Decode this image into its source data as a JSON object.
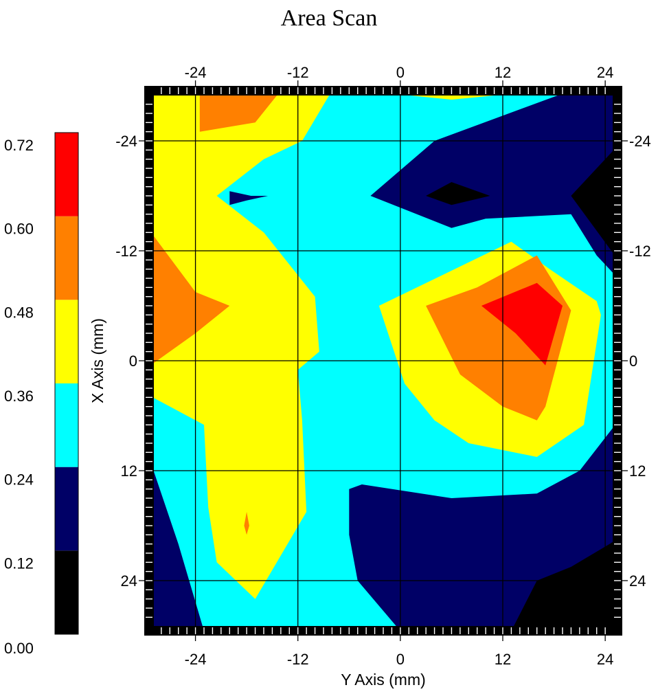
{
  "chart_data": {
    "type": "heatmap",
    "title": "Area Scan",
    "xlabel": "Y Axis (mm)",
    "ylabel": "X Axis (mm)",
    "x_range": [
      -30,
      26
    ],
    "y_range": [
      -30,
      30
    ],
    "x_axis_reversed": false,
    "y_axis_reversed": true,
    "x_ticks": [
      -24,
      -12,
      0,
      12,
      24
    ],
    "x_tick_labels": [
      "-24",
      "-12",
      "0",
      "12",
      "24"
    ],
    "y_ticks": [
      -24,
      -12,
      0,
      12,
      24
    ],
    "y_tick_labels": [
      "-24",
      "-12",
      "0",
      "12",
      "24"
    ],
    "grid": true,
    "colorbar": {
      "position": "left",
      "levels": [
        0.0,
        0.12,
        0.24,
        0.36,
        0.48,
        0.6,
        0.72
      ],
      "level_labels": [
        "0.00",
        "0.12",
        "0.24",
        "0.36",
        "0.48",
        "0.60",
        "0.72"
      ],
      "colors": [
        "#000000",
        "#000066",
        "#00ffff",
        "#ffff00",
        "#ff8000",
        "#ff0000"
      ]
    },
    "background_level_color": "#00ffff",
    "contour_regions": [
      {
        "level": "0.36-0.48",
        "color": "#ffff00",
        "points": [
          [
            -30,
            -29.5
          ],
          [
            -8,
            -29.5
          ],
          [
            -11.5,
            -24
          ],
          [
            -16,
            -22
          ],
          [
            -21.5,
            -18
          ],
          [
            -16,
            -14
          ],
          [
            -10,
            -7
          ],
          [
            -9.5,
            -1
          ],
          [
            -12,
            1
          ],
          [
            -11.5,
            6.5
          ],
          [
            -11,
            16.5
          ],
          [
            -17,
            26
          ],
          [
            -21.5,
            22
          ],
          [
            -22.5,
            16
          ],
          [
            -23,
            7
          ],
          [
            -30,
            3.5
          ]
        ]
      },
      {
        "level": "0.36-0.48",
        "color": "#ffff00",
        "points": [
          [
            -4.5,
            -29.5
          ],
          [
            17,
            -29.5
          ],
          [
            6,
            -28.5
          ]
        ]
      },
      {
        "level": "0.36-0.48",
        "color": "#ffff00",
        "points": [
          [
            -2.5,
            -6
          ],
          [
            13,
            -13
          ],
          [
            17.5,
            -10
          ],
          [
            23,
            -6.5
          ],
          [
            23.5,
            -5
          ],
          [
            21.5,
            7
          ],
          [
            16,
            10.5
          ],
          [
            8,
            9
          ],
          [
            4,
            6.5
          ],
          [
            0.5,
            2.5
          ]
        ]
      },
      {
        "level": "0.48-0.60",
        "color": "#ff8000",
        "points": [
          [
            -30,
            -15
          ],
          [
            -24,
            -7.5
          ],
          [
            -20,
            -6
          ],
          [
            -24,
            -3
          ],
          [
            -30,
            1
          ]
        ]
      },
      {
        "level": "0.48-0.60",
        "color": "#ff8000",
        "points": [
          [
            -23.5,
            -29.5
          ],
          [
            -14,
            -29.5
          ],
          [
            -17,
            -26
          ],
          [
            -23.5,
            -25
          ]
        ]
      },
      {
        "level": "0.48-0.60",
        "color": "#ff8000",
        "points": [
          [
            3,
            -6
          ],
          [
            9,
            -8
          ],
          [
            16,
            -11.5
          ],
          [
            20,
            -5.5
          ],
          [
            17,
            5
          ],
          [
            16,
            6.5
          ],
          [
            12,
            5
          ],
          [
            7,
            1.5
          ]
        ]
      },
      {
        "level": "0.48-0.60",
        "color": "#ff8000",
        "points": [
          [
            -18,
            16.5
          ],
          [
            -17.7,
            18
          ],
          [
            -18,
            19
          ],
          [
            -18.3,
            18
          ]
        ]
      },
      {
        "level": "0.60-0.72",
        "color": "#ff0000",
        "points": [
          [
            9.5,
            -6
          ],
          [
            16,
            -8.5
          ],
          [
            19,
            -6
          ],
          [
            17,
            0.5
          ],
          [
            13.5,
            -3
          ]
        ]
      },
      {
        "level": "0.24-0.36",
        "color": "#000066",
        "points": [
          [
            -3.5,
            -18
          ],
          [
            4,
            -24
          ],
          [
            20,
            -29.5
          ],
          [
            27,
            -29.5
          ],
          [
            27,
            -14
          ],
          [
            26,
            -8.5
          ],
          [
            23,
            -11.5
          ],
          [
            20,
            -16
          ],
          [
            10,
            -15.5
          ],
          [
            6,
            -14.5
          ]
        ]
      },
      {
        "level": "0.24-0.36",
        "color": "#000066",
        "points": [
          [
            27,
            -9
          ],
          [
            27,
            4.5
          ],
          [
            26,
            -2.5
          ],
          [
            26,
            -6
          ]
        ]
      },
      {
        "level": "0.24-0.36",
        "color": "#000066",
        "points": [
          [
            -30,
            9
          ],
          [
            -26,
            20
          ],
          [
            -23,
            29.5
          ],
          [
            -30,
            29.5
          ]
        ]
      },
      {
        "level": "0.24-0.36",
        "color": "#000066",
        "points": [
          [
            -6,
            14
          ],
          [
            -4.5,
            13.5
          ],
          [
            6,
            15
          ],
          [
            16,
            14.5
          ],
          [
            21,
            12
          ],
          [
            26,
            6
          ],
          [
            27,
            4.5
          ],
          [
            27,
            29.5
          ],
          [
            0,
            29.5
          ],
          [
            -5,
            24
          ],
          [
            -6,
            19
          ]
        ]
      },
      {
        "level": "0.24-0.36",
        "color": "#000066",
        "points": [
          [
            -20,
            -18.5
          ],
          [
            -17.5,
            -18
          ],
          [
            -15.5,
            -18
          ],
          [
            -18,
            -17.5
          ],
          [
            -20,
            -17
          ]
        ]
      },
      {
        "level": "0.12-0.24",
        "color": "#000000",
        "points": [
          [
            3,
            -18
          ],
          [
            6,
            -19.5
          ],
          [
            10.5,
            -18
          ],
          [
            6,
            -17
          ]
        ]
      },
      {
        "level": "0.12-0.24",
        "color": "#000000",
        "points": [
          [
            20,
            -18
          ],
          [
            25,
            -23
          ],
          [
            27,
            -25
          ],
          [
            27,
            -8
          ],
          [
            25.5,
            -11
          ]
        ]
      },
      {
        "level": "0.12-0.24",
        "color": "#000000",
        "points": [
          [
            13,
            29.5
          ],
          [
            16,
            24
          ],
          [
            20,
            22.5
          ],
          [
            24.5,
            20
          ],
          [
            27,
            18.5
          ],
          [
            27,
            29.5
          ]
        ]
      }
    ]
  }
}
